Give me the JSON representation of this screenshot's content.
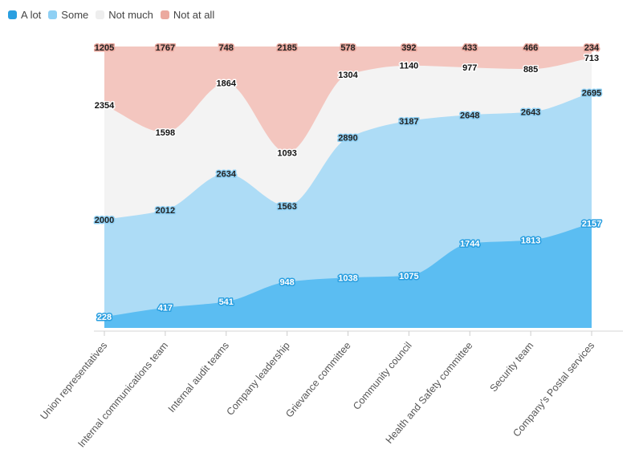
{
  "chart_data": {
    "type": "area",
    "stacked": true,
    "legend_position": "top-left",
    "grid": false,
    "categories": [
      "Union representatives",
      "Internal communications team",
      "Internal audit teams",
      "Company leadership",
      "Grievance committee",
      "Community council",
      "Health and Safety committee",
      "Security team",
      "Company's Postal services"
    ],
    "series": [
      {
        "name": "A lot",
        "color": "#5bbdf2",
        "values": [
          228,
          417,
          541,
          948,
          1038,
          1075,
          1744,
          1813,
          2157
        ]
      },
      {
        "name": "Some",
        "color": "#addcf6",
        "values": [
          2000,
          2012,
          2634,
          1563,
          2890,
          3187,
          2648,
          2643,
          2695
        ]
      },
      {
        "name": "Not much",
        "color": "#f3f3f3",
        "values": [
          2354,
          1598,
          1864,
          1093,
          1304,
          1140,
          977,
          885,
          713
        ]
      },
      {
        "name": "Not at all",
        "color": "#f3c6bf",
        "values": [
          1205,
          1767,
          748,
          2185,
          578,
          392,
          433,
          466,
          234
        ]
      }
    ]
  }
}
